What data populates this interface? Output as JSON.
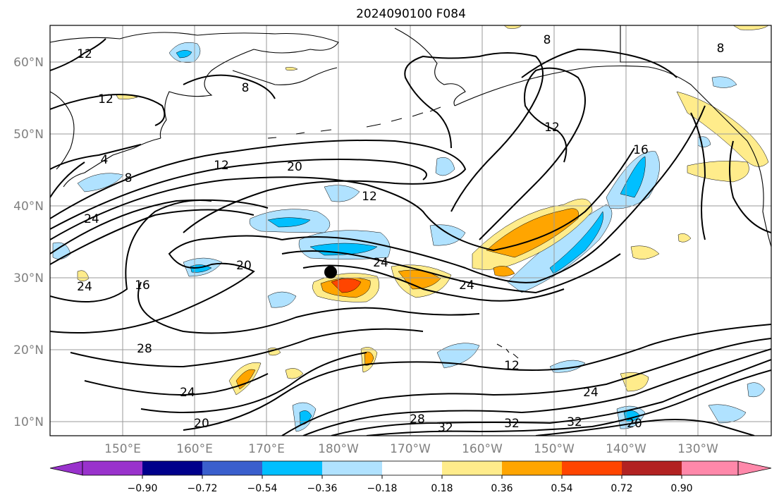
{
  "title": "2024090100 F084",
  "lat_labels": [
    "60°N",
    "50°N",
    "40°N",
    "30°N",
    "20°N",
    "10°N"
  ],
  "lon_labels": [
    "150°E",
    "160°E",
    "170°E",
    "180°W",
    "170°W",
    "160°W",
    "150°W",
    "140°W",
    "130°W"
  ],
  "colorbar": {
    "colors": [
      "#9932cc",
      "#00008b",
      "#3a5fcd",
      "#00bfff",
      "#b0e2ff",
      "#ffffff",
      "#ffec8b",
      "#ffa500",
      "#ff4500",
      "#b22222",
      "#ff88aa"
    ],
    "tick_labels": [
      "−0.90",
      "−0.72",
      "−0.54",
      "−0.36",
      "−0.18",
      "0.18",
      "0.36",
      "0.54",
      "0.72",
      "0.90"
    ]
  },
  "contour_labels": [
    "8",
    "8",
    "8",
    "8",
    "12",
    "12",
    "12",
    "12",
    "12",
    "12",
    "16",
    "16",
    "20",
    "20",
    "20",
    "20",
    "24",
    "24",
    "24",
    "24",
    "24",
    "24",
    "28",
    "28",
    "32",
    "32",
    "32",
    "4"
  ],
  "marker": "storm-center"
}
